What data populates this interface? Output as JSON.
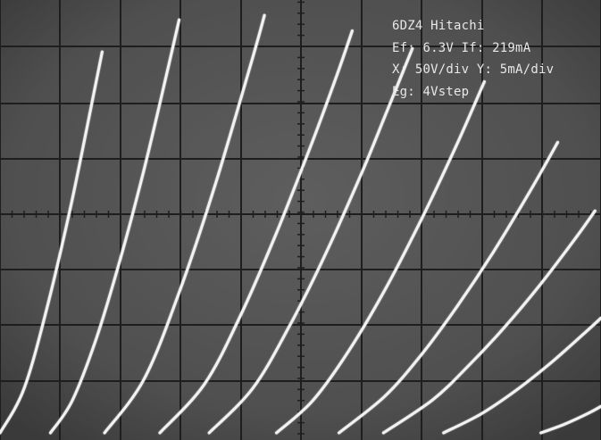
{
  "screen": {
    "background": "#555555",
    "grid_color": "#1e1e1e",
    "trace_color": "#f2f2f2",
    "text_color": "#e8e8e8"
  },
  "readout": {
    "line1": "6DZ4 Hitachi",
    "line2": "Ef: 6.3V If: 219mA",
    "line3": "X: 50V/div Y: 5mA/div",
    "line4": "Eg: 4Vstep"
  },
  "chart_data": {
    "type": "line",
    "title": "",
    "xlabel": "",
    "ylabel": "",
    "x_unit": "V",
    "y_unit": "mA",
    "x_scale_per_div": 50,
    "y_scale_per_div": 5,
    "x_divisions": 10,
    "y_divisions": 8,
    "xlim": [
      0,
      500
    ],
    "ylim": [
      0,
      40
    ],
    "grid": true,
    "grid_step": 4,
    "series": [
      {
        "points": [
          [
            0,
            0
          ],
          [
            20,
            4
          ],
          [
            40,
            11.7
          ],
          [
            60,
            21.1
          ],
          [
            80,
            31.8
          ],
          [
            85,
            34.5
          ]
        ]
      },
      {
        "points": [
          [
            42,
            0
          ],
          [
            60,
            2.9
          ],
          [
            80,
            8.5
          ],
          [
            100,
            15.7
          ],
          [
            120,
            23.9
          ],
          [
            140,
            33.1
          ],
          [
            149,
            37.4
          ]
        ]
      },
      {
        "points": [
          [
            87,
            0
          ],
          [
            120,
            4.9
          ],
          [
            150,
            13.0
          ],
          [
            180,
            22.8
          ],
          [
            210,
            33.9
          ],
          [
            220,
            37.8
          ]
        ]
      },
      {
        "points": [
          [
            133,
            0
          ],
          [
            170,
            4.4
          ],
          [
            200,
            10.6
          ],
          [
            230,
            18.1
          ],
          [
            260,
            26.4
          ],
          [
            280,
            32.3
          ],
          [
            293,
            36.4
          ]
        ]
      },
      {
        "points": [
          [
            174,
            0
          ],
          [
            210,
            4.0
          ],
          [
            240,
            9.5
          ],
          [
            270,
            16.0
          ],
          [
            300,
            23.3
          ],
          [
            320,
            28.6
          ],
          [
            343,
            34.8
          ]
        ]
      },
      {
        "points": [
          [
            230,
            0
          ],
          [
            260,
            2.9
          ],
          [
            290,
            7.4
          ],
          [
            320,
            12.9
          ],
          [
            350,
            19.2
          ],
          [
            380,
            26.1
          ],
          [
            403,
            31.8
          ]
        ]
      },
      {
        "points": [
          [
            282,
            0
          ],
          [
            320,
            3.3
          ],
          [
            350,
            7.0
          ],
          [
            380,
            11.4
          ],
          [
            410,
            16.3
          ],
          [
            440,
            21.7
          ],
          [
            464,
            26.3
          ]
        ]
      },
      {
        "points": [
          [
            319,
            0
          ],
          [
            360,
            3.0
          ],
          [
            390,
            6.1
          ],
          [
            420,
            9.6
          ],
          [
            450,
            13.5
          ],
          [
            480,
            17.8
          ],
          [
            495,
            20.1
          ]
        ]
      },
      {
        "points": [
          [
            369,
            0
          ],
          [
            400,
            1.7
          ],
          [
            430,
            3.9
          ],
          [
            460,
            6.5
          ],
          [
            490,
            9.4
          ],
          [
            500,
            10.4
          ]
        ]
      },
      {
        "points": [
          [
            450,
            0
          ],
          [
            470,
            0.8
          ],
          [
            490,
            1.8
          ],
          [
            500,
            2.4
          ]
        ]
      }
    ]
  }
}
